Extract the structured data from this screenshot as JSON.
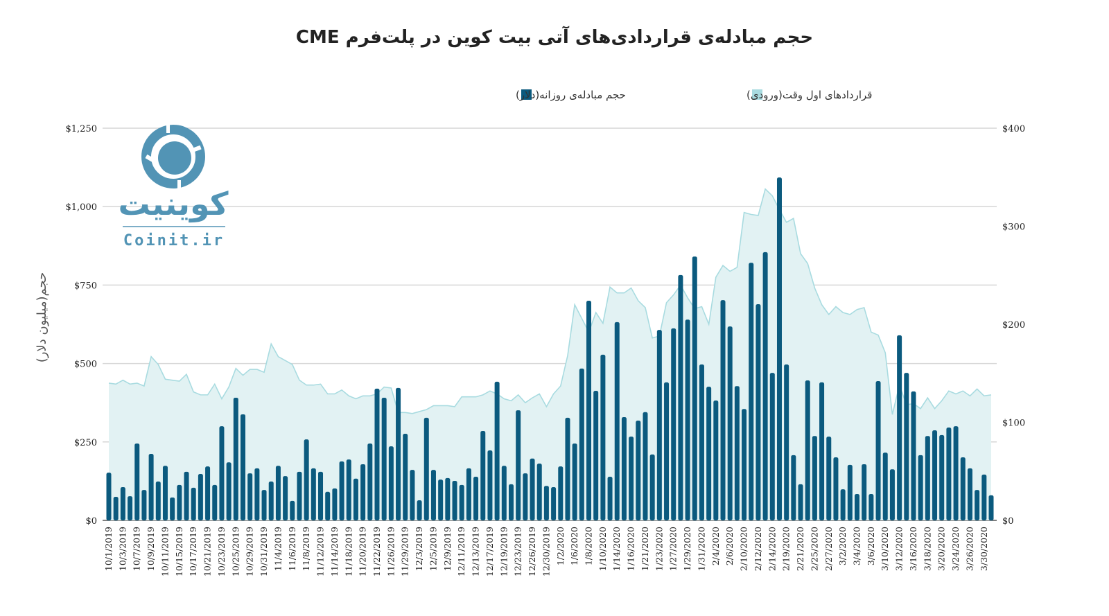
{
  "chart_data": {
    "type": "bar",
    "title": "حجم مبادله‌ی قراردادی‌های آتی بیت کوین در پلت‌فرم CME",
    "ylabel": "حجم(میلیون دلار)",
    "xlabel": "",
    "ylim": [
      0,
      1250
    ],
    "y2lim": [
      0,
      400
    ],
    "yticks": [
      "$0",
      "$250",
      "$500",
      "$750",
      "$1,000",
      "$1,250"
    ],
    "y2ticks": [
      "$0",
      "$100",
      "$200",
      "$300",
      "$400"
    ],
    "grid": true,
    "legend_placement": "top-center",
    "x_labels_every_other_bar": [
      "10/1/2019",
      "10/3/2019",
      "10/7/2019",
      "10/9/2019",
      "10/11/2019",
      "10/15/2019",
      "10/17/2019",
      "10/21/2019",
      "10/23/2019",
      "10/25/2019",
      "10/29/2019",
      "10/31/2019",
      "11/4/2019",
      "11/6/2019",
      "11/8/2019",
      "11/12/2019",
      "11/14/2019",
      "11/18/2019",
      "11/20/2019",
      "11/22/2019",
      "11/26/2019",
      "11/29/2019",
      "12/3/2019",
      "12/5/2019",
      "12/9/2019",
      "12/11/2019",
      "12/13/2019",
      "12/17/2019",
      "12/19/2019",
      "12/23/2019",
      "12/26/2019",
      "12/30/2019",
      "1/2/2020",
      "1/6/2020",
      "1/8/2020",
      "1/10/2020",
      "1/14/2020",
      "1/16/2020",
      "1/21/2020",
      "1/23/2020",
      "1/27/2020",
      "1/29/2020",
      "1/31/2020",
      "2/4/2020",
      "2/6/2020",
      "2/10/2020",
      "2/12/2020",
      "2/14/2020",
      "2/19/2020",
      "2/21/2020",
      "2/25/2020",
      "2/27/2020",
      "3/2/2020",
      "3/4/2020",
      "3/6/2020",
      "3/10/2020",
      "3/12/2020",
      "3/16/2020",
      "3/18/2020",
      "3/20/2020",
      "3/24/2020",
      "3/26/2020",
      "3/30/2020"
    ],
    "series": [
      {
        "name": "حجم مبادله‌ی روزانه(دلار)",
        "type": "bar",
        "axis": "left",
        "color": "#0b5a7e",
        "values": [
          152,
          75,
          106,
          77,
          245,
          97,
          212,
          124,
          174,
          73,
          113,
          155,
          104,
          148,
          172,
          113,
          300,
          185,
          391,
          338,
          150,
          166,
          97,
          124,
          174,
          141,
          62,
          155,
          258,
          166,
          155,
          91,
          102,
          188,
          194,
          133,
          179,
          245,
          420,
          391,
          236,
          422,
          276,
          161,
          64,
          327,
          161,
          130,
          135,
          126,
          113,
          166,
          139,
          285,
          223,
          442,
          174,
          115,
          351,
          150,
          197,
          181,
          110,
          106,
          172,
          327,
          245,
          484,
          700,
          413,
          528,
          139,
          632,
          329,
          267,
          318,
          345,
          210,
          607,
          440,
          612,
          782,
          640,
          841,
          497,
          426,
          382,
          702,
          618,
          428,
          355,
          821,
          689,
          855,
          470,
          1093,
          497,
          208,
          115,
          446,
          269,
          440,
          267,
          201,
          99,
          177,
          84,
          179,
          84,
          444,
          216,
          163,
          590,
          470,
          411,
          208,
          269,
          287,
          272,
          296,
          300,
          201,
          166,
          97,
          146,
          80
        ]
      },
      {
        "name": "قراردادهای اول وقت(ورودی)",
        "type": "area",
        "axis": "right",
        "color": "#a8dbe0",
        "values": [
          140,
          139,
          143,
          139,
          140,
          137,
          167,
          159,
          144,
          143,
          142,
          149,
          131,
          128,
          128,
          139,
          124,
          136,
          155,
          148,
          154,
          154,
          151,
          180,
          167,
          163,
          159,
          143,
          138,
          138,
          139,
          129,
          129,
          133,
          127,
          124,
          127,
          127,
          129,
          136,
          135,
          110,
          110,
          109,
          111,
          113,
          117,
          117,
          117,
          116,
          126,
          126,
          126,
          128,
          132,
          129,
          124,
          122,
          128,
          120,
          125,
          129,
          116,
          129,
          137,
          168,
          220,
          206,
          192,
          212,
          201,
          238,
          232,
          232,
          237,
          224,
          217,
          186,
          188,
          222,
          230,
          240,
          227,
          216,
          218,
          200,
          248,
          260,
          254,
          258,
          314,
          312,
          311,
          338,
          331,
          317,
          304,
          308,
          272,
          262,
          237,
          220,
          210,
          218,
          212,
          210,
          215,
          217,
          192,
          189,
          171,
          108,
          138,
          118,
          119,
          114,
          125,
          114,
          122,
          132,
          129,
          132,
          127,
          134,
          127,
          128
        ]
      }
    ]
  },
  "logo": {
    "text_fa": "کوینیت",
    "text_en": "Coinit.ir"
  }
}
